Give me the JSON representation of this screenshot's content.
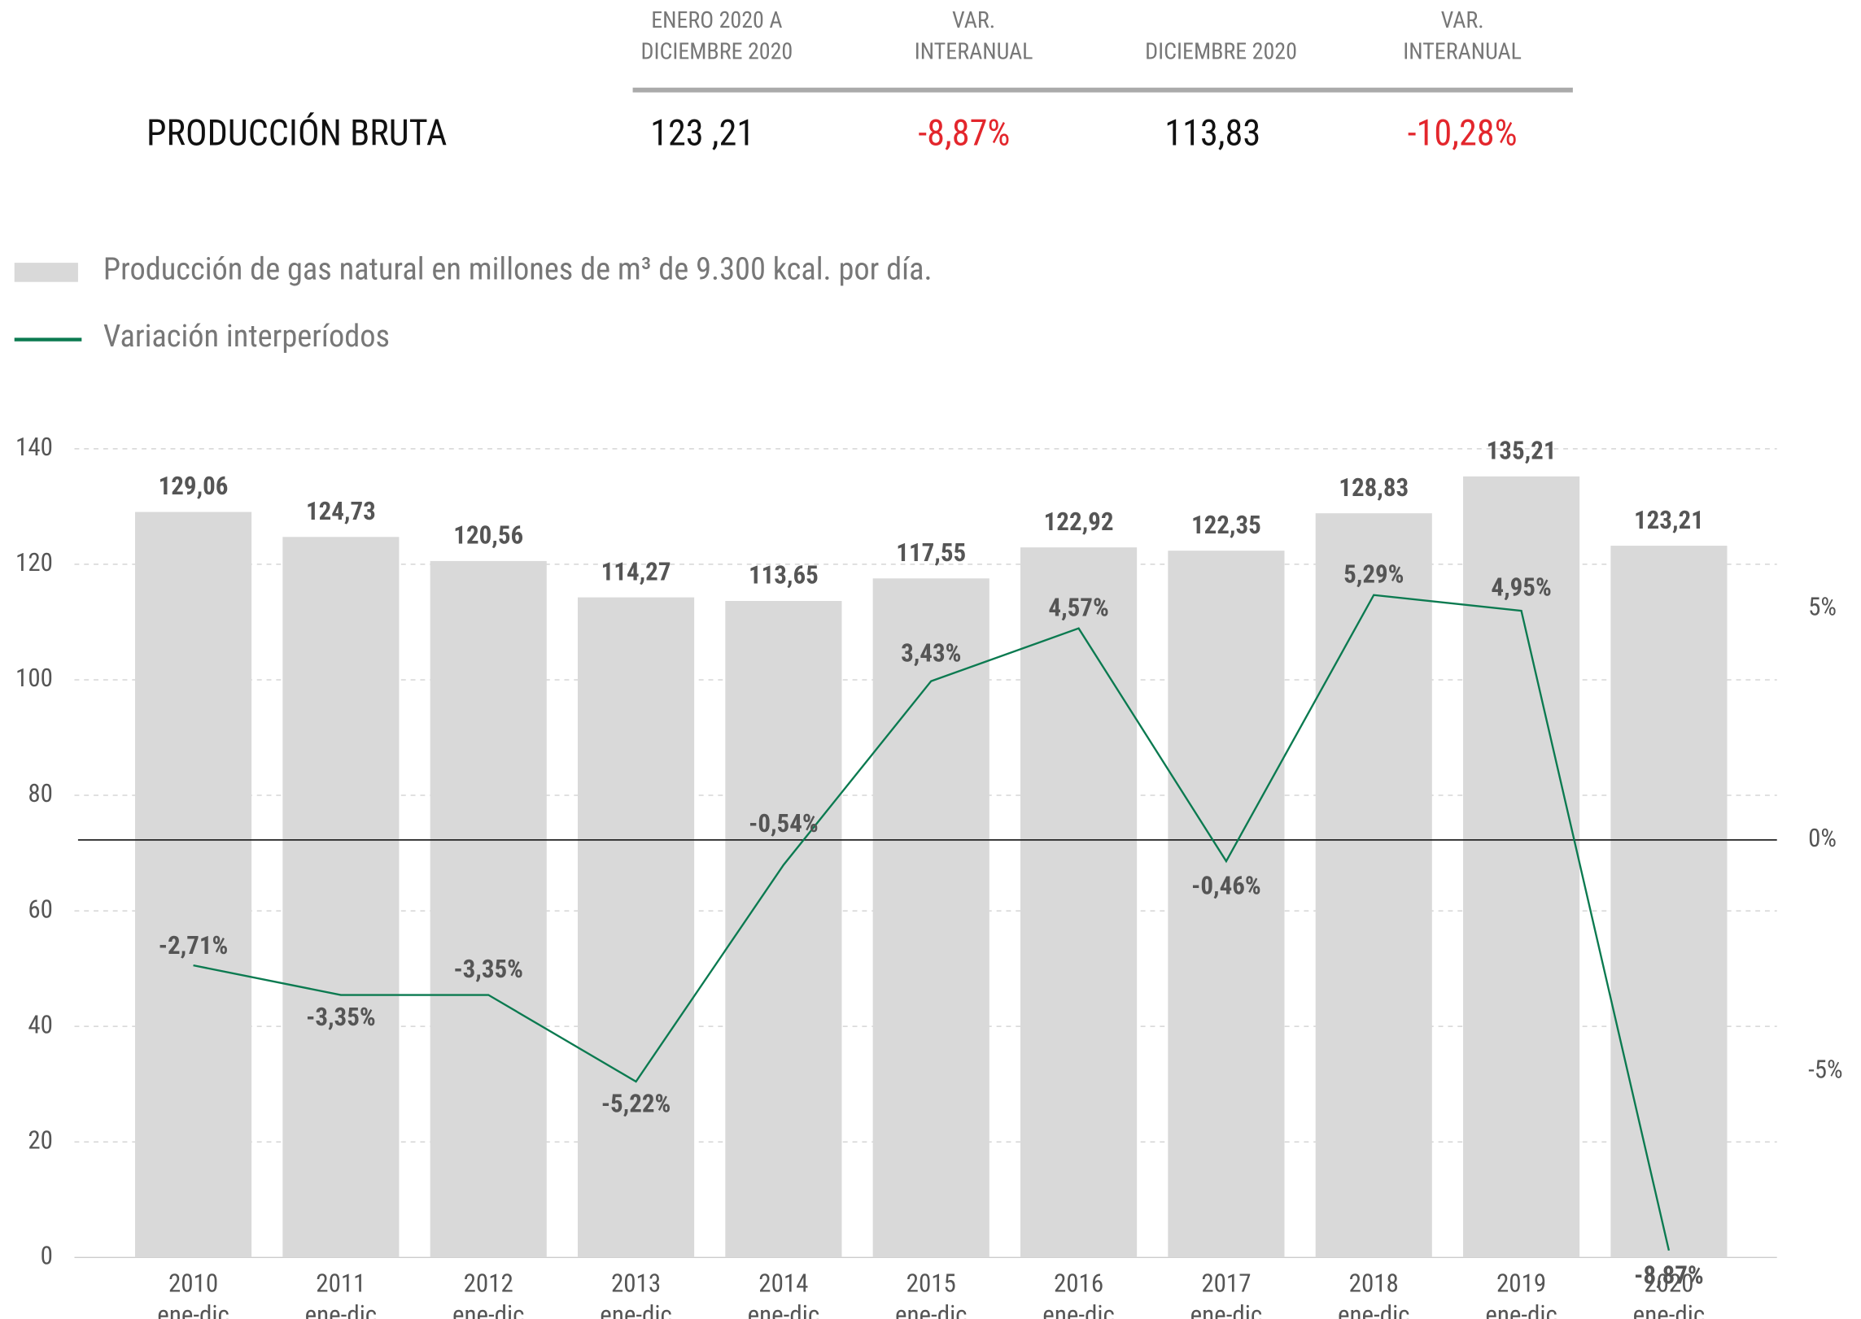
{
  "header": {
    "columns": [
      [
        "ENERO 2020 A",
        "DICIEMBRE 2020"
      ],
      [
        "VAR.",
        "INTERANUAL"
      ],
      [
        "DICIEMBRE 2020"
      ],
      [
        "VAR.",
        "INTERANUAL"
      ]
    ],
    "rows": [
      {
        "label": "PRODUCCIÓN BRUTA",
        "values": [
          "123 ,21",
          "-8,87%",
          "113,83",
          "-10,28%"
        ]
      }
    ]
  },
  "chart_data": {
    "type": "bar",
    "categories": [
      [
        "2010",
        "ene-dic"
      ],
      [
        "2011",
        "ene-dic"
      ],
      [
        "2012",
        "ene-dic"
      ],
      [
        "2013",
        "ene-dic"
      ],
      [
        "2014",
        "ene-dic"
      ],
      [
        "2015",
        "ene-dic"
      ],
      [
        "2016",
        "ene-dic"
      ],
      [
        "2017",
        "ene-dic"
      ],
      [
        "2018",
        "ene-dic"
      ],
      [
        "2019",
        "ene-dic"
      ],
      [
        "2020",
        "ene-dic"
      ]
    ],
    "series": [
      {
        "name": "Producción de gas natural en millones de m³ de 9.300 kcal. por día.",
        "type": "bar",
        "color": "#d9d9d9",
        "values": [
          129.06,
          124.73,
          120.56,
          114.27,
          113.65,
          117.55,
          122.92,
          122.35,
          128.83,
          135.21,
          123.21
        ],
        "value_labels": [
          "129,06",
          "124,73",
          "120,56",
          "114,27",
          "113,65",
          "117,55",
          "122,92",
          "122,35",
          "128,83",
          "135,21",
          "123,21"
        ]
      },
      {
        "name": "Variación interperíodos",
        "type": "line",
        "axis": "y2",
        "color": "#0b7a50",
        "values": [
          -2.71,
          -3.35,
          -3.35,
          -5.22,
          -0.54,
          3.43,
          4.57,
          -0.46,
          5.29,
          4.95,
          -8.87
        ],
        "value_labels": [
          "-2,71%",
          "-3,35%",
          "-3,35%",
          "-5,22%",
          "-0,54%",
          "3,43%",
          "4,57%",
          "-0,46%",
          "5,29%",
          "4,95%",
          "-8,87%"
        ]
      }
    ],
    "ylim": [
      0,
      140
    ],
    "yticks": [
      0,
      20,
      40,
      60,
      80,
      100,
      120,
      140
    ],
    "y2lim": [
      -9.02,
      8.45
    ],
    "y2ticks": [
      {
        "value": -5,
        "label": "-5%"
      },
      {
        "value": 0,
        "label": "0%"
      },
      {
        "value": 5,
        "label": "5%"
      }
    ],
    "grid": true
  }
}
